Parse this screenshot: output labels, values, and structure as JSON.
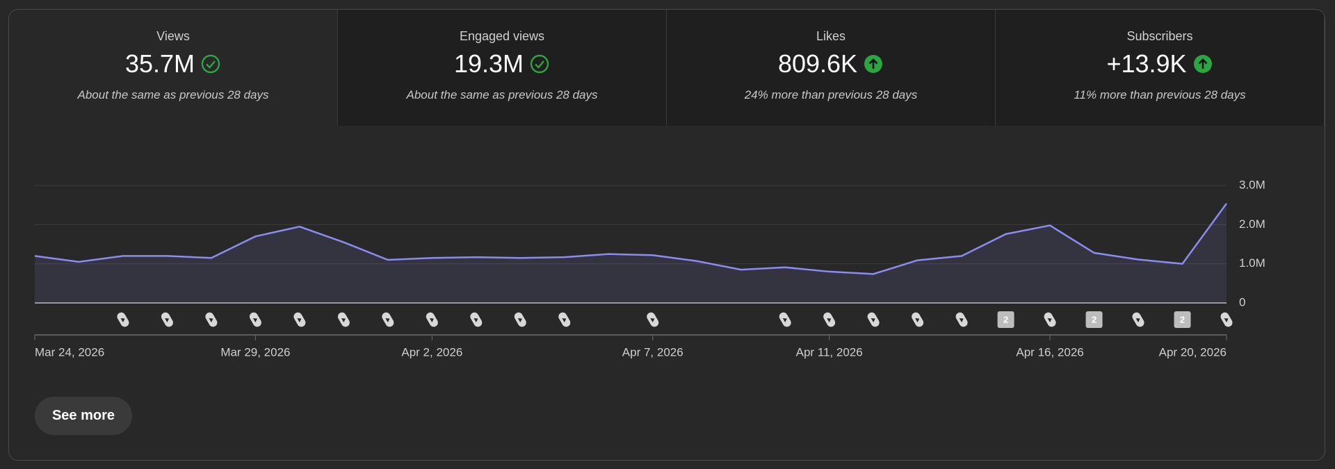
{
  "cards": [
    {
      "title": "Views",
      "value": "35.7M",
      "icon": "check",
      "comparison": "About the same as previous 28 days",
      "selected": true
    },
    {
      "title": "Engaged views",
      "value": "19.3M",
      "icon": "check",
      "comparison": "About the same as previous 28 days",
      "selected": false
    },
    {
      "title": "Likes",
      "value": "809.6K",
      "icon": "up",
      "comparison": "24% more than previous 28 days",
      "selected": false
    },
    {
      "title": "Subscribers",
      "value": "+13.9K",
      "icon": "up",
      "comparison": "11% more than previous 28 days",
      "selected": false
    }
  ],
  "chart_data": {
    "type": "line",
    "categories": [
      "Mar 24, 2026",
      null,
      null,
      null,
      null,
      "Mar 29, 2026",
      null,
      null,
      null,
      "Apr 2, 2026",
      null,
      null,
      null,
      null,
      "Apr 7, 2026",
      null,
      null,
      null,
      "Apr 11, 2026",
      null,
      null,
      null,
      null,
      "Apr 16, 2026",
      null,
      null,
      null,
      "Apr 20, 2026"
    ],
    "series": [
      {
        "name": "Views",
        "color": "#8c8cf0",
        "values": [
          1200000,
          1050000,
          1200000,
          1200000,
          1150000,
          1700000,
          1950000,
          1550000,
          1100000,
          1150000,
          1170000,
          1150000,
          1170000,
          1250000,
          1220000,
          1070000,
          850000,
          910000,
          800000,
          740000,
          1090000,
          1200000,
          1760000,
          1980000,
          1280000,
          1110000,
          1000000,
          2540000
        ]
      }
    ],
    "uploads": [
      null,
      null,
      1,
      1,
      1,
      1,
      1,
      1,
      1,
      1,
      1,
      1,
      1,
      null,
      1,
      null,
      null,
      1,
      1,
      1,
      1,
      1,
      2,
      1,
      2,
      1,
      2,
      1
    ],
    "ylim": [
      0,
      3000000
    ],
    "yticks": [
      0,
      {
        "value": 1000000,
        "label": "1.0M"
      },
      {
        "value": 2000000,
        "label": "2.0M"
      },
      {
        "value": 3000000,
        "label": "3.0M"
      }
    ],
    "grid": true
  },
  "button": "See more"
}
